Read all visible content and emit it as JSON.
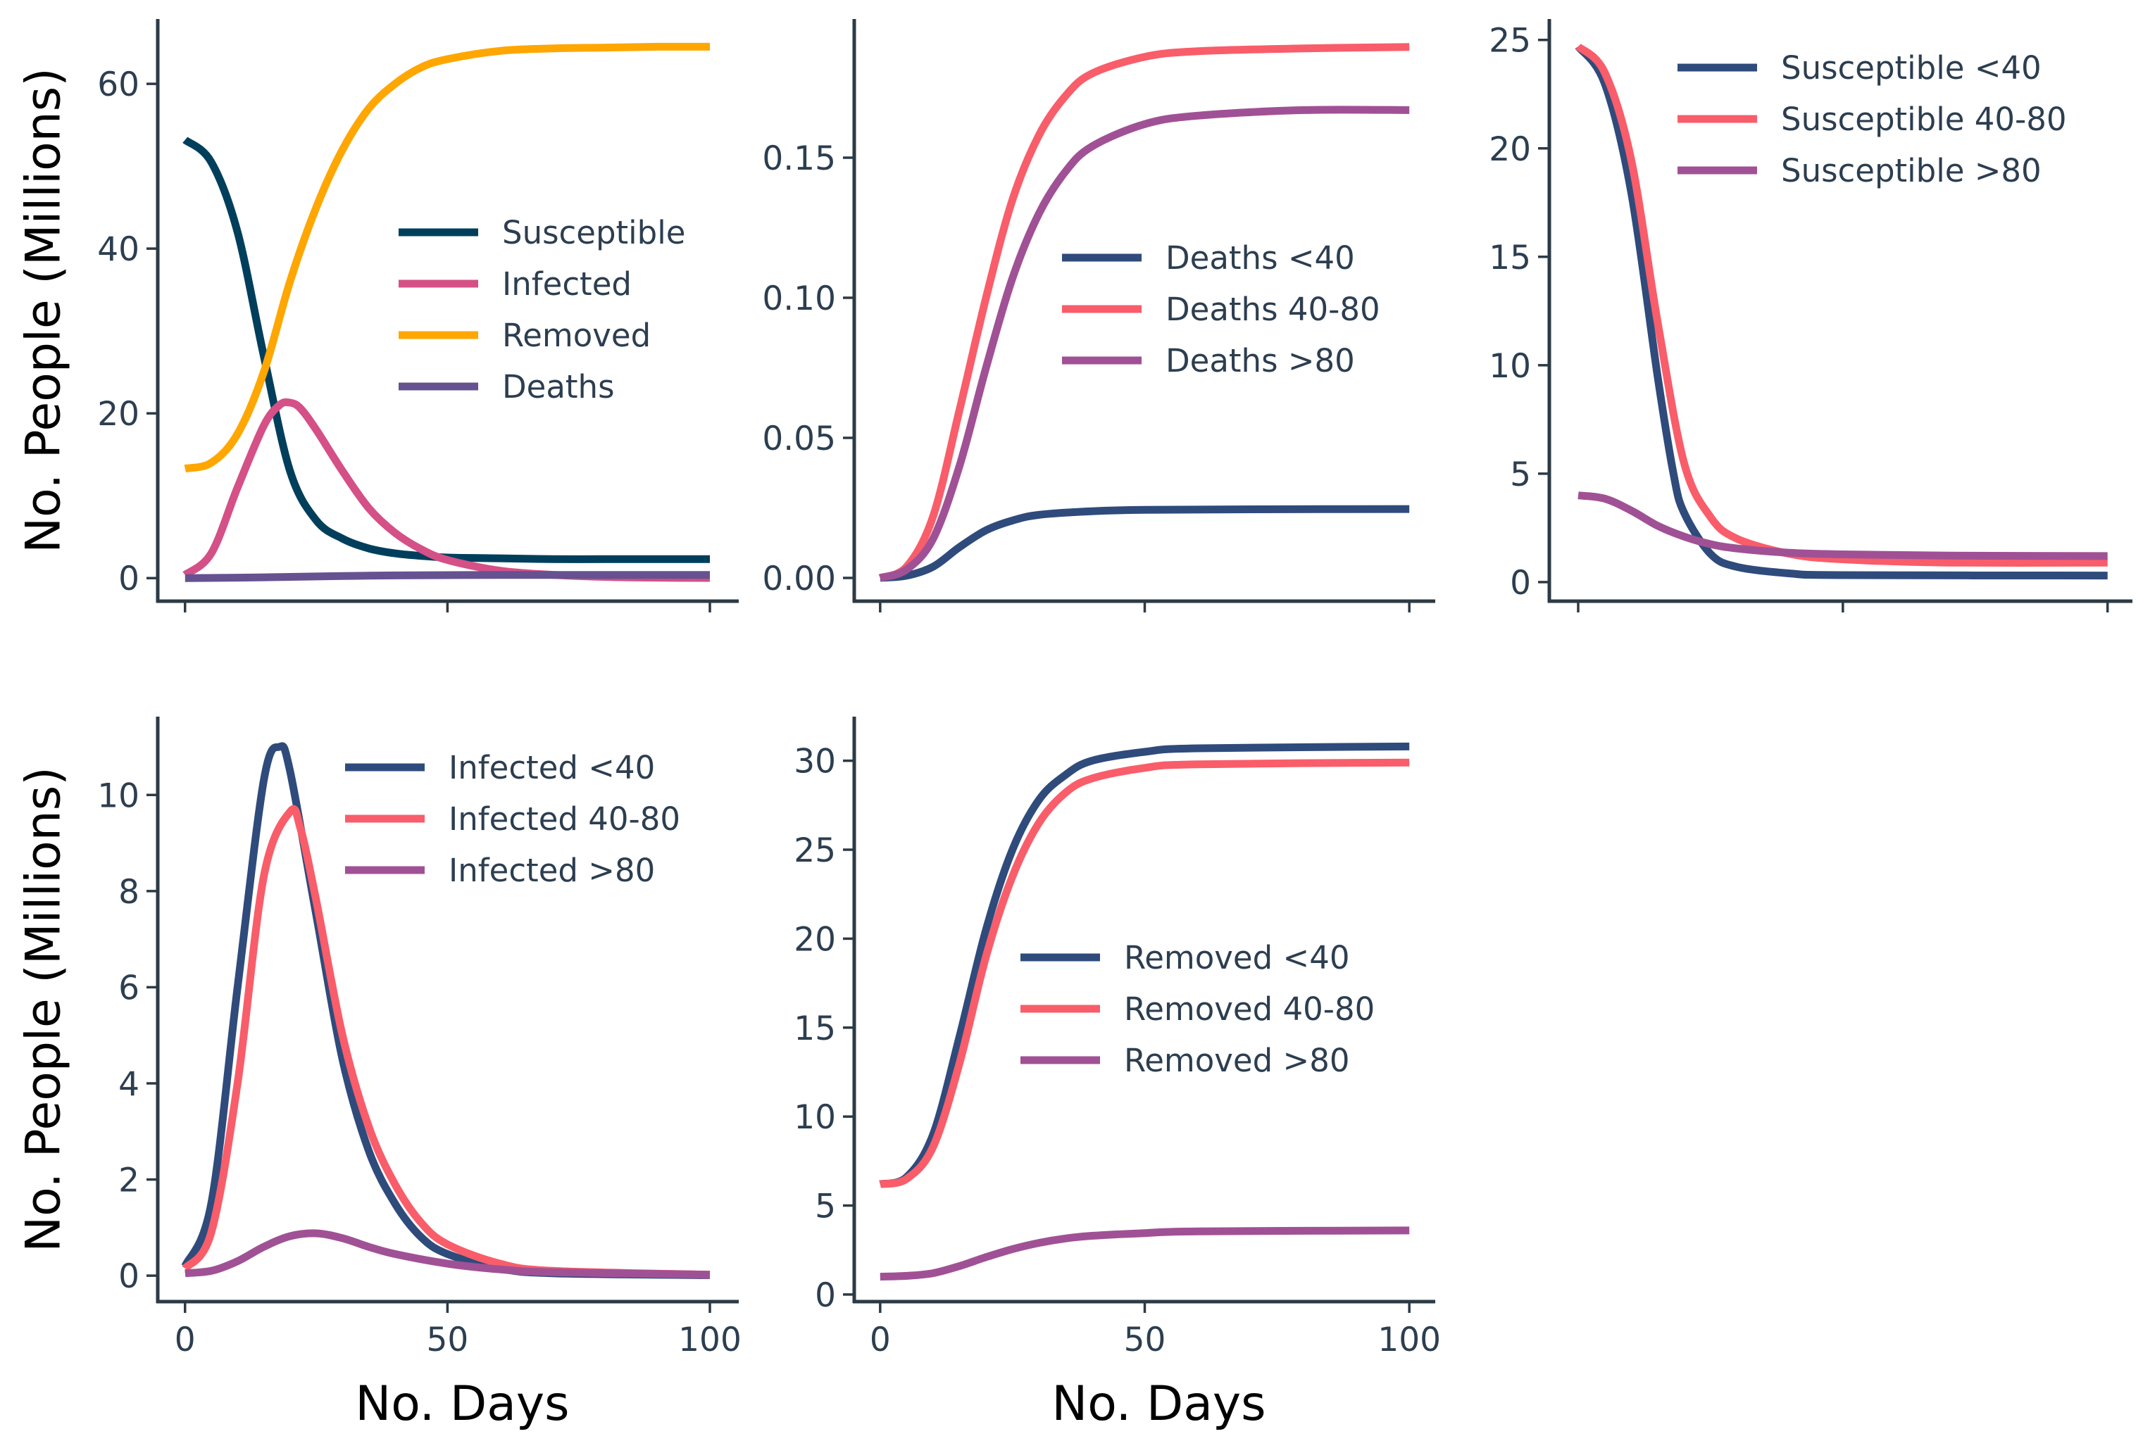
{
  "figure": {
    "ylabel": "No. People (Millions)",
    "xlabel": "No. Days"
  },
  "chart_data": [
    {
      "type": "line",
      "title": "",
      "xlabel": "",
      "ylabel": "No. People (Millions)",
      "xlim": [
        -5.2,
        105.5
      ],
      "ylim": [
        -2.8,
        67.7
      ],
      "xticks": [
        0,
        50,
        100
      ],
      "xtick_labels": [],
      "yticks": [
        0,
        20,
        40,
        60
      ],
      "ytick_labels": [
        "0",
        "20",
        "40",
        "60"
      ],
      "grid": false,
      "legend": "center-right",
      "series": [
        {
          "name": "Susceptible",
          "color": "#003f5c",
          "x": [
            0,
            5,
            10,
            15,
            20,
            25,
            30,
            35,
            40,
            45,
            50,
            60,
            70,
            80,
            90,
            100
          ],
          "y": [
            53.2,
            50.5,
            42,
            27,
            13,
            7,
            4.8,
            3.6,
            3.0,
            2.7,
            2.5,
            2.4,
            2.3,
            2.3,
            2.3,
            2.3
          ]
        },
        {
          "name": "Infected",
          "color": "#d45087",
          "x": [
            0,
            5,
            10,
            15,
            18,
            20,
            22,
            25,
            30,
            35,
            40,
            45,
            50,
            60,
            70,
            80,
            90,
            100
          ],
          "y": [
            0.4,
            3,
            11,
            18.5,
            21,
            21.3,
            20.6,
            18,
            13,
            8.5,
            5.5,
            3.5,
            2.2,
            0.9,
            0.4,
            0.15,
            0.05,
            0.02
          ]
        },
        {
          "name": "Removed",
          "color": "#ffa600",
          "x": [
            0,
            5,
            10,
            15,
            20,
            25,
            30,
            35,
            40,
            45,
            50,
            60,
            70,
            80,
            90,
            100
          ],
          "y": [
            13.3,
            14,
            17.5,
            25,
            36,
            45,
            52,
            57,
            60,
            62,
            63,
            64,
            64.3,
            64.4,
            64.5,
            64.5
          ]
        },
        {
          "name": "Deaths",
          "color": "#665191",
          "x": [
            0,
            10,
            20,
            30,
            40,
            50,
            60,
            80,
            100
          ],
          "y": [
            0,
            0.05,
            0.15,
            0.25,
            0.33,
            0.36,
            0.38,
            0.39,
            0.39
          ]
        }
      ]
    },
    {
      "type": "line",
      "title": "",
      "xlabel": "",
      "ylabel": "",
      "xlim": [
        -4.9,
        104.9
      ],
      "ylim": [
        -0.0083,
        0.199
      ],
      "xticks": [
        0,
        50,
        100
      ],
      "xtick_labels": [],
      "yticks": [
        0,
        0.05,
        0.1,
        0.15
      ],
      "ytick_labels": [
        "0.00",
        "0.05",
        "0.10",
        "0.15"
      ],
      "grid": false,
      "legend": "center-right",
      "series": [
        {
          "name": "Deaths <40",
          "color": "#2f4b7c",
          "x": [
            0,
            5,
            10,
            15,
            20,
            25,
            30,
            40,
            50,
            70,
            100
          ],
          "y": [
            0,
            0.0008,
            0.004,
            0.011,
            0.017,
            0.0205,
            0.0225,
            0.0238,
            0.0243,
            0.0245,
            0.0246
          ]
        },
        {
          "name": "Deaths 40-80",
          "color": "#f95d6a",
          "x": [
            0,
            5,
            10,
            15,
            20,
            25,
            30,
            35,
            40,
            50,
            60,
            80,
            100
          ],
          "y": [
            0,
            0.004,
            0.022,
            0.06,
            0.1,
            0.135,
            0.158,
            0.172,
            0.18,
            0.186,
            0.188,
            0.189,
            0.1895
          ]
        },
        {
          "name": "Deaths >80",
          "color": "#a05195",
          "x": [
            0,
            5,
            10,
            15,
            20,
            25,
            30,
            35,
            40,
            50,
            60,
            80,
            100
          ],
          "y": [
            0,
            0.003,
            0.014,
            0.04,
            0.075,
            0.107,
            0.13,
            0.145,
            0.154,
            0.162,
            0.165,
            0.167,
            0.167
          ]
        }
      ]
    },
    {
      "type": "line",
      "title": "",
      "xlabel": "",
      "ylabel": "",
      "xlim": [
        -5.45,
        104.7
      ],
      "ylim": [
        -0.88,
        25.9
      ],
      "xticks": [
        0,
        50,
        100
      ],
      "xtick_labels": [],
      "yticks": [
        0,
        5,
        10,
        15,
        20,
        25
      ],
      "ytick_labels": [
        "0",
        "5",
        "10",
        "15",
        "20",
        "25"
      ],
      "grid": false,
      "legend": "top-right",
      "series": [
        {
          "name": "Susceptible <40",
          "color": "#2f4b7c",
          "x": [
            0,
            5,
            10,
            15,
            18,
            20,
            25,
            30,
            40,
            50,
            100
          ],
          "y": [
            24.7,
            23,
            18,
            9.5,
            5,
            3.2,
            1.3,
            0.7,
            0.4,
            0.32,
            0.3
          ]
        },
        {
          "name": "Susceptible 40-80",
          "color": "#f95d6a",
          "x": [
            0,
            5,
            10,
            15,
            20,
            25,
            30,
            40,
            50,
            70,
            100
          ],
          "y": [
            24.7,
            23.5,
            19.5,
            12,
            5.5,
            3,
            2,
            1.3,
            1.05,
            0.9,
            0.9
          ]
        },
        {
          "name": "Susceptible >80",
          "color": "#a05195",
          "x": [
            0,
            5,
            10,
            15,
            20,
            25,
            30,
            40,
            50,
            70,
            100
          ],
          "y": [
            4,
            3.85,
            3.3,
            2.6,
            2.1,
            1.75,
            1.55,
            1.35,
            1.28,
            1.22,
            1.2
          ]
        }
      ]
    },
    {
      "type": "line",
      "title": "",
      "xlabel": "No. Days",
      "ylabel": "No. People (Millions)",
      "xlim": [
        -5.2,
        105.5
      ],
      "ylim": [
        -0.54,
        11.6
      ],
      "xticks": [
        0,
        50,
        100
      ],
      "xtick_labels": [
        "0",
        "50",
        "100"
      ],
      "yticks": [
        0,
        2,
        4,
        6,
        8,
        10
      ],
      "ytick_labels": [
        "0",
        "2",
        "4",
        "6",
        "8",
        "10"
      ],
      "grid": false,
      "legend": "top-right",
      "series": [
        {
          "name": "Infected <40",
          "color": "#2f4b7c",
          "x": [
            0,
            5,
            10,
            15,
            18,
            20,
            25,
            30,
            35,
            40,
            45,
            50,
            60,
            70,
            100
          ],
          "y": [
            0.2,
            1.5,
            6,
            10.3,
            11,
            10.5,
            7.5,
            4.5,
            2.6,
            1.5,
            0.8,
            0.45,
            0.15,
            0.05,
            0.01
          ]
        },
        {
          "name": "Infected 40-80",
          "color": "#f95d6a",
          "x": [
            0,
            5,
            10,
            15,
            20,
            22,
            25,
            30,
            35,
            40,
            45,
            50,
            60,
            70,
            100
          ],
          "y": [
            0.15,
            0.9,
            4,
            8.3,
            9.65,
            9.3,
            7.8,
            5,
            3.1,
            1.9,
            1.1,
            0.65,
            0.25,
            0.1,
            0.02
          ]
        },
        {
          "name": "Infected >80",
          "color": "#a05195",
          "x": [
            0,
            5,
            10,
            15,
            20,
            25,
            30,
            35,
            40,
            50,
            60,
            70,
            100
          ],
          "y": [
            0.05,
            0.1,
            0.3,
            0.6,
            0.82,
            0.88,
            0.78,
            0.6,
            0.45,
            0.25,
            0.13,
            0.07,
            0.02
          ]
        }
      ]
    },
    {
      "type": "line",
      "title": "",
      "xlabel": "No. Days",
      "ylabel": "",
      "xlim": [
        -4.9,
        104.9
      ],
      "ylim": [
        -0.4,
        32.4
      ],
      "xticks": [
        0,
        50,
        100
      ],
      "xtick_labels": [
        "0",
        "50",
        "100"
      ],
      "yticks": [
        0,
        5,
        10,
        15,
        20,
        25,
        30
      ],
      "ytick_labels": [
        "0",
        "5",
        "10",
        "15",
        "20",
        "25",
        "30"
      ],
      "grid": false,
      "legend": "center-right",
      "series": [
        {
          "name": "Removed <40",
          "color": "#2f4b7c",
          "x": [
            0,
            5,
            10,
            15,
            20,
            25,
            30,
            35,
            40,
            50,
            60,
            100
          ],
          "y": [
            6.2,
            6.6,
            9,
            14.5,
            20.5,
            25,
            27.8,
            29.2,
            30,
            30.5,
            30.7,
            30.8
          ]
        },
        {
          "name": "Removed 40-80",
          "color": "#f95d6a",
          "x": [
            0,
            5,
            10,
            15,
            20,
            25,
            30,
            35,
            40,
            50,
            60,
            100
          ],
          "y": [
            6.2,
            6.5,
            8.3,
            13,
            19,
            23.5,
            26.5,
            28.2,
            29,
            29.6,
            29.8,
            29.9
          ]
        },
        {
          "name": "Removed >80",
          "color": "#a05195",
          "x": [
            0,
            5,
            10,
            15,
            20,
            25,
            30,
            35,
            40,
            50,
            60,
            100
          ],
          "y": [
            1.0,
            1.05,
            1.2,
            1.6,
            2.1,
            2.55,
            2.9,
            3.15,
            3.3,
            3.45,
            3.55,
            3.6
          ]
        }
      ]
    }
  ]
}
